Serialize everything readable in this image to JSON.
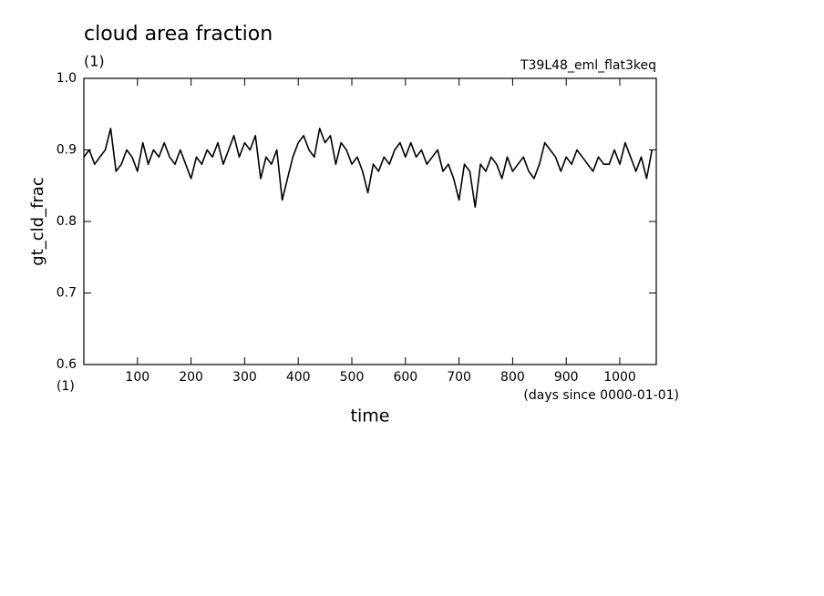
{
  "chart_data": {
    "type": "line",
    "title": "cloud area fraction",
    "subtitle": "(1)",
    "annotation": "T39L48_eml_flat3keq",
    "y_label": "gt_cld_frac",
    "y_unit": "(1)",
    "x_label": "time",
    "x_unit": "(days since 0000-01-01)",
    "color": "#000000",
    "x": [
      0,
      10,
      20,
      30,
      40,
      50,
      60,
      70,
      80,
      90,
      100,
      110,
      120,
      130,
      140,
      150,
      160,
      170,
      180,
      190,
      200,
      210,
      220,
      230,
      240,
      250,
      260,
      270,
      280,
      290,
      300,
      310,
      320,
      330,
      340,
      350,
      360,
      370,
      380,
      390,
      400,
      410,
      420,
      430,
      440,
      450,
      460,
      470,
      480,
      490,
      500,
      510,
      520,
      530,
      540,
      550,
      560,
      570,
      580,
      590,
      600,
      610,
      620,
      630,
      640,
      650,
      660,
      670,
      680,
      690,
      700,
      710,
      720,
      730,
      740,
      750,
      760,
      770,
      780,
      790,
      800,
      810,
      820,
      830,
      840,
      850,
      860,
      870,
      880,
      890,
      900,
      910,
      920,
      930,
      940,
      950,
      960,
      970,
      980,
      990,
      1000,
      1010,
      1020,
      1030,
      1040,
      1050,
      1060
    ],
    "values": [
      0.89,
      0.9,
      0.88,
      0.89,
      0.9,
      0.93,
      0.87,
      0.88,
      0.9,
      0.89,
      0.87,
      0.91,
      0.88,
      0.9,
      0.89,
      0.91,
      0.89,
      0.88,
      0.9,
      0.88,
      0.86,
      0.89,
      0.88,
      0.9,
      0.89,
      0.91,
      0.88,
      0.9,
      0.92,
      0.89,
      0.91,
      0.9,
      0.92,
      0.86,
      0.89,
      0.88,
      0.9,
      0.83,
      0.86,
      0.89,
      0.91,
      0.92,
      0.9,
      0.89,
      0.93,
      0.91,
      0.92,
      0.88,
      0.91,
      0.9,
      0.88,
      0.89,
      0.87,
      0.84,
      0.88,
      0.87,
      0.89,
      0.88,
      0.9,
      0.91,
      0.89,
      0.91,
      0.89,
      0.9,
      0.88,
      0.89,
      0.9,
      0.87,
      0.88,
      0.86,
      0.83,
      0.88,
      0.87,
      0.82,
      0.88,
      0.87,
      0.89,
      0.88,
      0.86,
      0.89,
      0.87,
      0.88,
      0.89,
      0.87,
      0.86,
      0.88,
      0.91,
      0.9,
      0.89,
      0.87,
      0.89,
      0.88,
      0.9,
      0.89,
      0.88,
      0.87,
      0.89,
      0.88,
      0.88,
      0.9,
      0.88,
      0.91,
      0.89,
      0.87,
      0.89,
      0.86,
      0.9
    ],
    "xlim": [
      0,
      1068
    ],
    "ylim": [
      0.6,
      1.0
    ],
    "xticks": [
      100,
      200,
      300,
      400,
      500,
      600,
      700,
      800,
      900,
      1000
    ],
    "yticks": [
      {
        "value": 0.6,
        "label": "0.6"
      },
      {
        "value": 0.7,
        "label": "0.7"
      },
      {
        "value": 0.8,
        "label": "0.8"
      },
      {
        "value": 0.9,
        "label": "0.9"
      },
      {
        "value": 1.0,
        "label": "1.0"
      }
    ],
    "grid": false
  }
}
